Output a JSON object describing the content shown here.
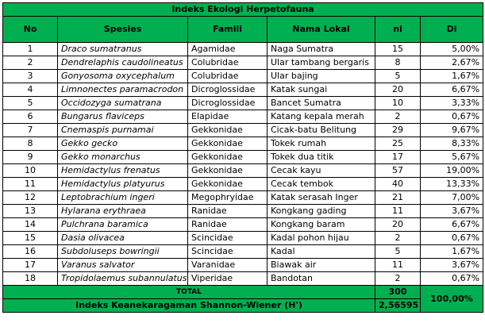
{
  "table": {
    "title": "Indeks Ekologi Herpetofauna",
    "header": [
      "No",
      "Spesies",
      "Famili",
      "Nama Lokal",
      "ni",
      "Di"
    ],
    "rows": [
      [
        "1",
        "Draco sumatranus",
        "Agamidae",
        "Naga Sumatra",
        "15",
        "5,00%"
      ],
      [
        "2",
        "Dendrelaphis caudolineatus",
        "Colubridae",
        "Ular tambang bergaris",
        "8",
        "2,67%"
      ],
      [
        "3",
        "Gonyosoma oxycephalum",
        "Colubridae",
        "Ular bajing",
        "5",
        "1,67%"
      ],
      [
        "4",
        "Limnonectes paramacrodon",
        "Dicroglossidae",
        "Katak sungai",
        "20",
        "6,67%"
      ],
      [
        "5",
        "Occidozyga sumatrana",
        "Dicroglossidae",
        "Bancet Sumatra",
        "10",
        "3,33%"
      ],
      [
        "6",
        "Bungarus flaviceps",
        "Elapidae",
        "Katang kepala merah",
        "2",
        "0,67%"
      ],
      [
        "7",
        "Cnemaspis purnamai",
        "Gekkonidae",
        "Cicak-batu Belitung",
        "29",
        "9,67%"
      ],
      [
        "8",
        "Gekko gecko",
        "Gekkonidae",
        "Tokek rumah",
        "25",
        "8,33%"
      ],
      [
        "9",
        "Gekko monarchus",
        "Gekkonidae",
        "Tokek dua titik",
        "17",
        "5,67%"
      ],
      [
        "10",
        "Hemidactylus frenatus",
        "Gekkonidae",
        "Cecak kayu",
        "57",
        "19,00%"
      ],
      [
        "11",
        "Hemidactylus platyurus",
        "Gekkonidae",
        "Cecak tembok",
        "40",
        "13,33%"
      ],
      [
        "12",
        "Leptobrachium ingeri",
        "Megophryidae",
        "Katak serasah Inger",
        "21",
        "7,00%"
      ],
      [
        "13",
        "Hylarana erythraea",
        "Ranidae",
        "Kongkang gading",
        "11",
        "3,67%"
      ],
      [
        "14",
        "Pulchrana baramica",
        "Ranidae",
        "Kongkang baram",
        "20",
        "6,67%"
      ],
      [
        "15",
        "Dasia olivacea",
        "Scincidae",
        "Kadal pohon hijau",
        "2",
        "0,67%"
      ],
      [
        "16",
        "Subdoluseps bowringii",
        "Scincidae",
        "Kadal",
        "5",
        "1,67%"
      ],
      [
        "17",
        "Varanus salvator",
        "Varanidae",
        "Biawak air",
        "11",
        "3,67%"
      ],
      [
        "18",
        "Tropidolaemus subannulatus",
        "Viperidae",
        "Bandotan",
        "2",
        "0,67%"
      ]
    ],
    "total_label": "TOTAL",
    "total_ni": "300",
    "total_di": "100,00%",
    "index_label": "Indeks Keanekaragaman Shannon-Wiener (H')",
    "index_value": "2,56595"
  }
}
